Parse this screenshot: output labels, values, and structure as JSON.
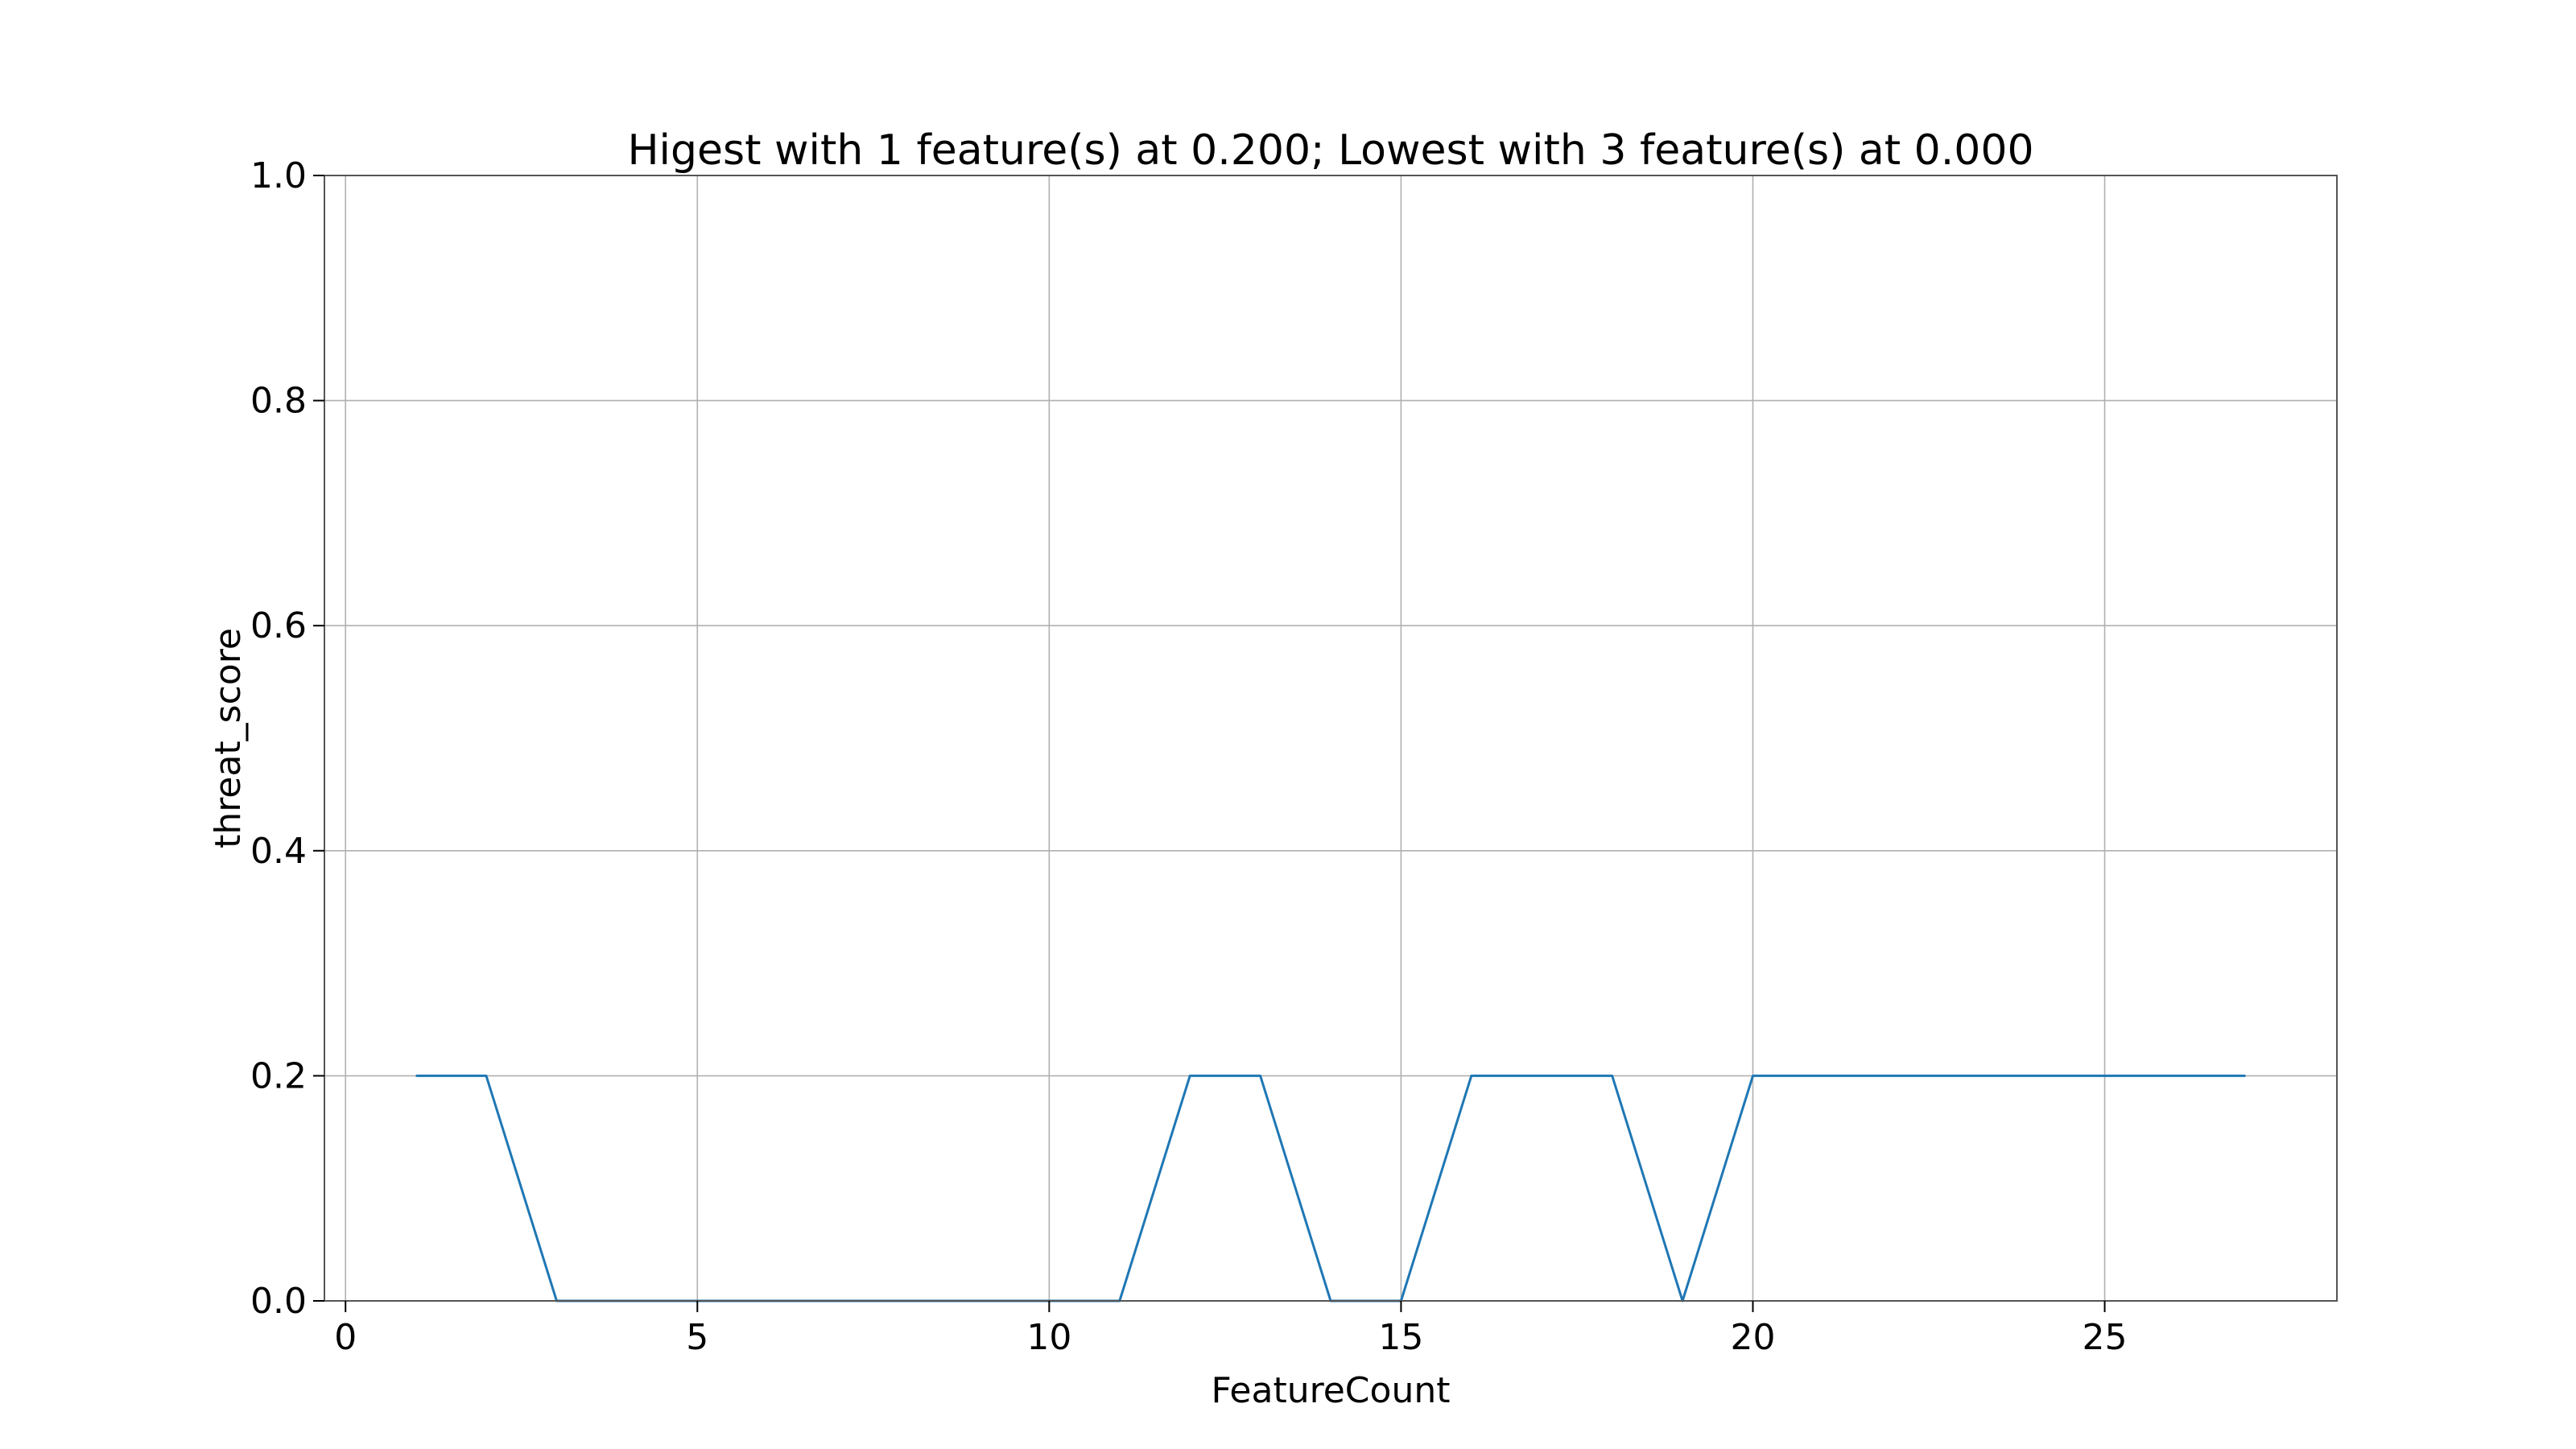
{
  "chart_data": {
    "type": "line",
    "title": "Higest with 1 feature(s) at 0.200; Lowest with 3 feature(s) at 0.000",
    "xlabel": "FeatureCount",
    "ylabel": "threat_score",
    "xlim": [
      -0.3,
      28.3
    ],
    "ylim": [
      0.0,
      1.0
    ],
    "grid": true,
    "x_ticks": [
      0,
      5,
      10,
      15,
      20,
      25
    ],
    "x_tick_labels": [
      "0",
      "5",
      "10",
      "15",
      "20",
      "25"
    ],
    "y_ticks": [
      0.0,
      0.2,
      0.4,
      0.6,
      0.8,
      1.0
    ],
    "y_tick_labels": [
      "0.0",
      "0.2",
      "0.4",
      "0.6",
      "0.8",
      "1.0"
    ],
    "series": [
      {
        "color": "#1f77b4",
        "x": [
          1,
          2,
          3,
          4,
          5,
          6,
          7,
          8,
          9,
          10,
          11,
          12,
          13,
          14,
          15,
          16,
          17,
          18,
          19,
          20,
          21,
          22,
          23,
          24,
          25,
          26,
          27
        ],
        "y": [
          0.2,
          0.2,
          0.0,
          0.0,
          0.0,
          0.0,
          0.0,
          0.0,
          0.0,
          0.0,
          0.0,
          0.2,
          0.2,
          0.0,
          0.0,
          0.2,
          0.2,
          0.2,
          0.0,
          0.2,
          0.2,
          0.2,
          0.2,
          0.2,
          0.2,
          0.2,
          0.2
        ]
      }
    ]
  }
}
